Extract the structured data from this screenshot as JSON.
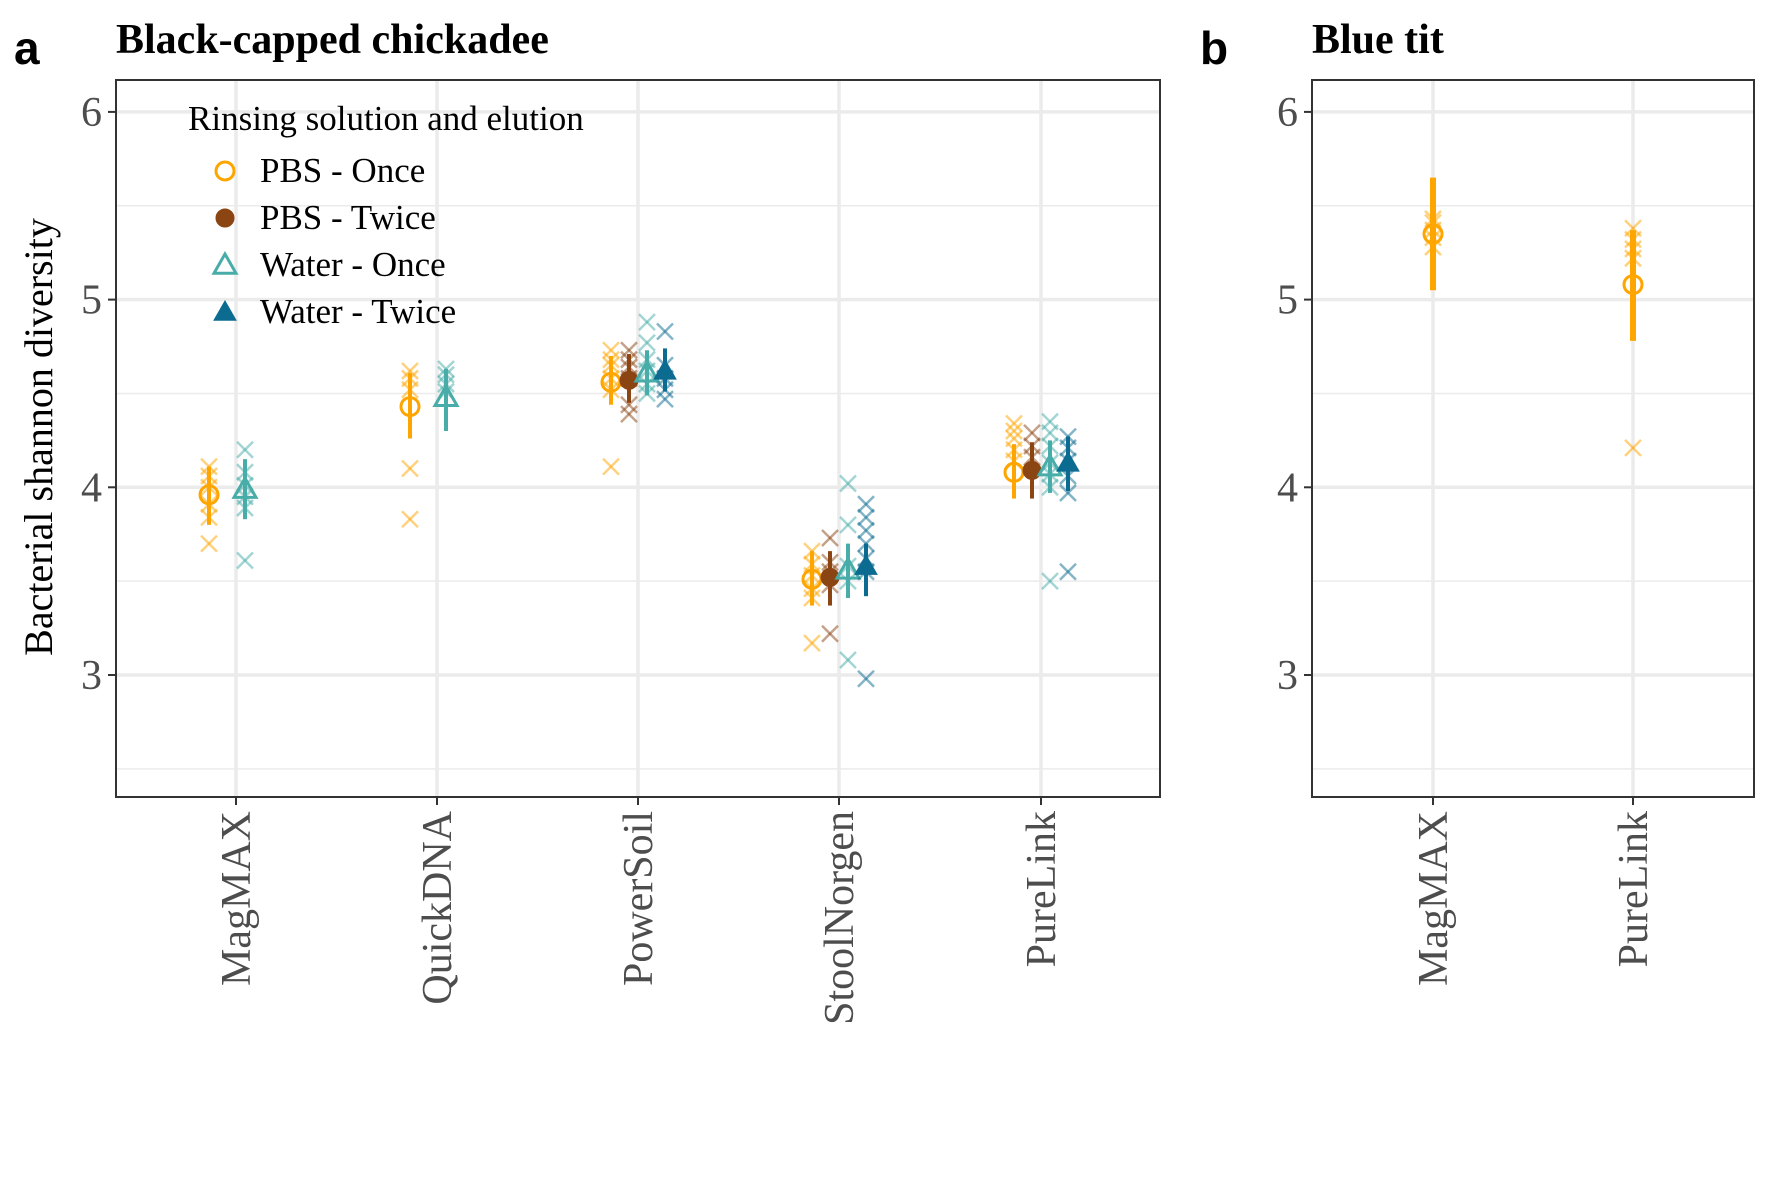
{
  "figure": {
    "panel_a_letter": "a",
    "panel_b_letter": "b"
  },
  "chart_data": [
    {
      "type": "scatter",
      "panel": "a",
      "title": "Black-capped chickadee",
      "ylabel": "Bacterial shannon diversity",
      "xlabel": "",
      "ylim": [
        2.35,
        6.17
      ],
      "yticks": [
        3,
        4,
        5,
        6
      ],
      "grid": true,
      "legend": {
        "title": "Rinsing solution and elution",
        "placement": "top-left"
      },
      "categories": [
        "MagMAX",
        "QuickDNA",
        "PowerSoil",
        "StoolNorgen",
        "PureLink"
      ],
      "series": [
        {
          "name": "PBS - Once",
          "color": "#FFA500",
          "marker": "circle-open",
          "points": [
            {
              "category": "MagMAX",
              "mean": 3.96,
              "lo": 3.8,
              "hi": 4.11,
              "raw": [
                3.7,
                3.84,
                3.91,
                4.0,
                4.06,
                4.11
              ]
            },
            {
              "category": "QuickDNA",
              "mean": 4.43,
              "lo": 4.26,
              "hi": 4.61,
              "raw": [
                3.83,
                4.1,
                4.52,
                4.58,
                4.62
              ]
            },
            {
              "category": "PowerSoil",
              "mean": 4.56,
              "lo": 4.44,
              "hi": 4.7,
              "raw": [
                4.11,
                4.52,
                4.58,
                4.65,
                4.68,
                4.73
              ]
            },
            {
              "category": "StoolNorgen",
              "mean": 3.51,
              "lo": 3.37,
              "hi": 3.66,
              "raw": [
                3.17,
                3.41,
                3.46,
                3.53,
                3.59,
                3.66
              ]
            },
            {
              "category": "PureLink",
              "mean": 4.08,
              "lo": 3.94,
              "hi": 4.23,
              "raw": [
                4.14,
                4.2,
                4.26,
                4.3,
                4.34
              ]
            }
          ]
        },
        {
          "name": "PBS - Twice",
          "color": "#8B4513",
          "marker": "circle-filled",
          "points": [
            {
              "category": "PowerSoil",
              "mean": 4.57,
              "lo": 4.45,
              "hi": 4.71,
              "raw": [
                4.39,
                4.44,
                4.58,
                4.64,
                4.68,
                4.73
              ]
            },
            {
              "category": "StoolNorgen",
              "mean": 3.52,
              "lo": 3.37,
              "hi": 3.66,
              "raw": [
                3.22,
                3.48,
                3.55,
                3.6,
                3.73
              ]
            },
            {
              "category": "PureLink",
              "mean": 4.09,
              "lo": 3.94,
              "hi": 4.24,
              "raw": [
                4.16,
                4.22,
                4.29
              ]
            }
          ]
        },
        {
          "name": "Water - Once",
          "color": "#48ACA8",
          "marker": "triangle-open",
          "points": [
            {
              "category": "MagMAX",
              "mean": 3.99,
              "lo": 3.83,
              "hi": 4.15,
              "raw": [
                3.61,
                3.89,
                3.95,
                4.01,
                4.08,
                4.2
              ]
            },
            {
              "category": "QuickDNA",
              "mean": 4.48,
              "lo": 4.3,
              "hi": 4.63,
              "raw": [
                4.51,
                4.55,
                4.6,
                4.63
              ]
            },
            {
              "category": "PowerSoil",
              "mean": 4.61,
              "lo": 4.49,
              "hi": 4.73,
              "raw": [
                4.5,
                4.55,
                4.62,
                4.68,
                4.77,
                4.88
              ]
            },
            {
              "category": "StoolNorgen",
              "mean": 3.56,
              "lo": 3.41,
              "hi": 3.7,
              "raw": [
                3.08,
                3.5,
                3.58,
                3.8,
                4.02
              ]
            },
            {
              "category": "PureLink",
              "mean": 4.11,
              "lo": 3.97,
              "hi": 4.25,
              "raw": [
                3.5,
                4.0,
                4.07,
                4.13,
                4.22,
                4.29,
                4.35
              ]
            }
          ]
        },
        {
          "name": "Water - Twice",
          "color": "#0C6B91",
          "marker": "triangle-filled",
          "points": [
            {
              "category": "PowerSoil",
              "mean": 4.62,
              "lo": 4.51,
              "hi": 4.74,
              "raw": [
                4.47,
                4.52,
                4.58,
                4.65,
                4.83
              ]
            },
            {
              "category": "StoolNorgen",
              "mean": 3.58,
              "lo": 3.42,
              "hi": 3.7,
              "raw": [
                2.98,
                3.55,
                3.62,
                3.7,
                3.77,
                3.84,
                3.91
              ]
            },
            {
              "category": "PureLink",
              "mean": 4.13,
              "lo": 3.98,
              "hi": 4.27,
              "raw": [
                3.55,
                3.97,
                4.06,
                4.14,
                4.21,
                4.27
              ]
            }
          ]
        }
      ]
    },
    {
      "type": "scatter",
      "panel": "b",
      "title": "Blue tit",
      "ylabel": "",
      "xlabel": "",
      "ylim": [
        2.35,
        6.17
      ],
      "yticks": [
        3,
        4,
        5,
        6
      ],
      "grid": true,
      "categories": [
        "MagMAX",
        "PureLink"
      ],
      "series": [
        {
          "name": "PBS - Once",
          "color": "#FFA500",
          "marker": "circle-open",
          "points": [
            {
              "category": "MagMAX",
              "mean": 5.35,
              "lo": 5.05,
              "hi": 5.65,
              "raw": [
                5.28,
                5.33,
                5.37,
                5.41,
                5.43
              ]
            },
            {
              "category": "PureLink",
              "mean": 5.08,
              "lo": 4.78,
              "hi": 5.37,
              "raw": [
                4.21,
                5.22,
                5.27,
                5.32,
                5.38
              ]
            }
          ]
        }
      ]
    }
  ]
}
